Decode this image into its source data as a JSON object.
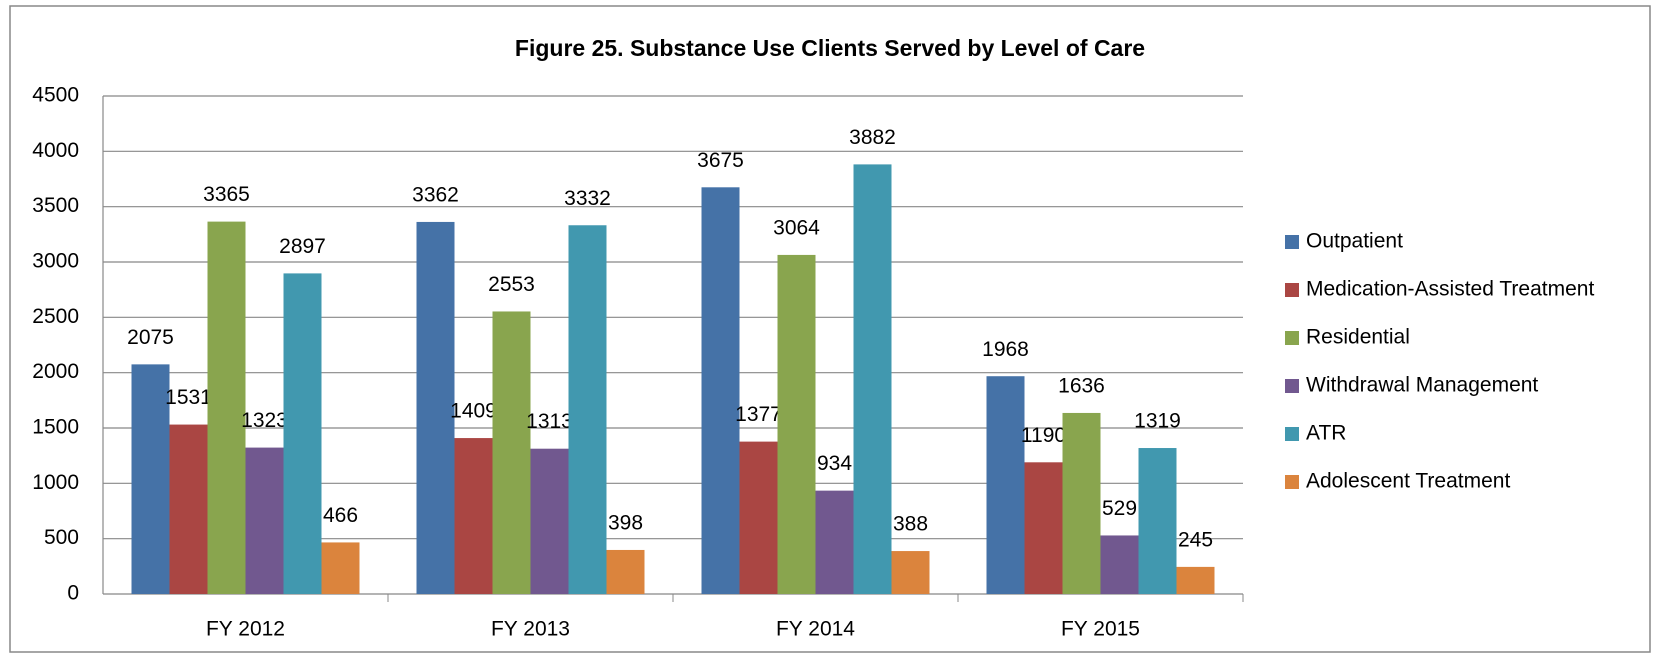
{
  "chart_data": {
    "type": "bar",
    "title": "Figure 25. Substance Use Clients Served by Level of Care",
    "categories": [
      "FY 2012",
      "FY 2013",
      "FY 2014",
      "FY 2015"
    ],
    "series": [
      {
        "name": "Outpatient",
        "color": "#4572a7",
        "values": [
          2075,
          3362,
          3675,
          1968
        ]
      },
      {
        "name": "Medication-Assisted Treatment",
        "color": "#aa4643",
        "values": [
          1531,
          1409,
          1377,
          1190
        ]
      },
      {
        "name": "Residential",
        "color": "#89a54e",
        "values": [
          3365,
          2553,
          3064,
          1636
        ]
      },
      {
        "name": "Withdrawal Management",
        "color": "#71588f",
        "values": [
          1323,
          1313,
          934,
          529
        ]
      },
      {
        "name": "ATR",
        "color": "#4198af",
        "values": [
          2897,
          3332,
          3882,
          1319
        ]
      },
      {
        "name": "Adolescent Treatment",
        "color": "#db843d",
        "values": [
          466,
          398,
          388,
          245
        ]
      }
    ],
    "ylim": [
      0,
      4500
    ],
    "yticks": [
      0,
      500,
      1000,
      1500,
      2000,
      2500,
      3000,
      3500,
      4000,
      4500
    ],
    "grid": true,
    "legend": "right"
  }
}
